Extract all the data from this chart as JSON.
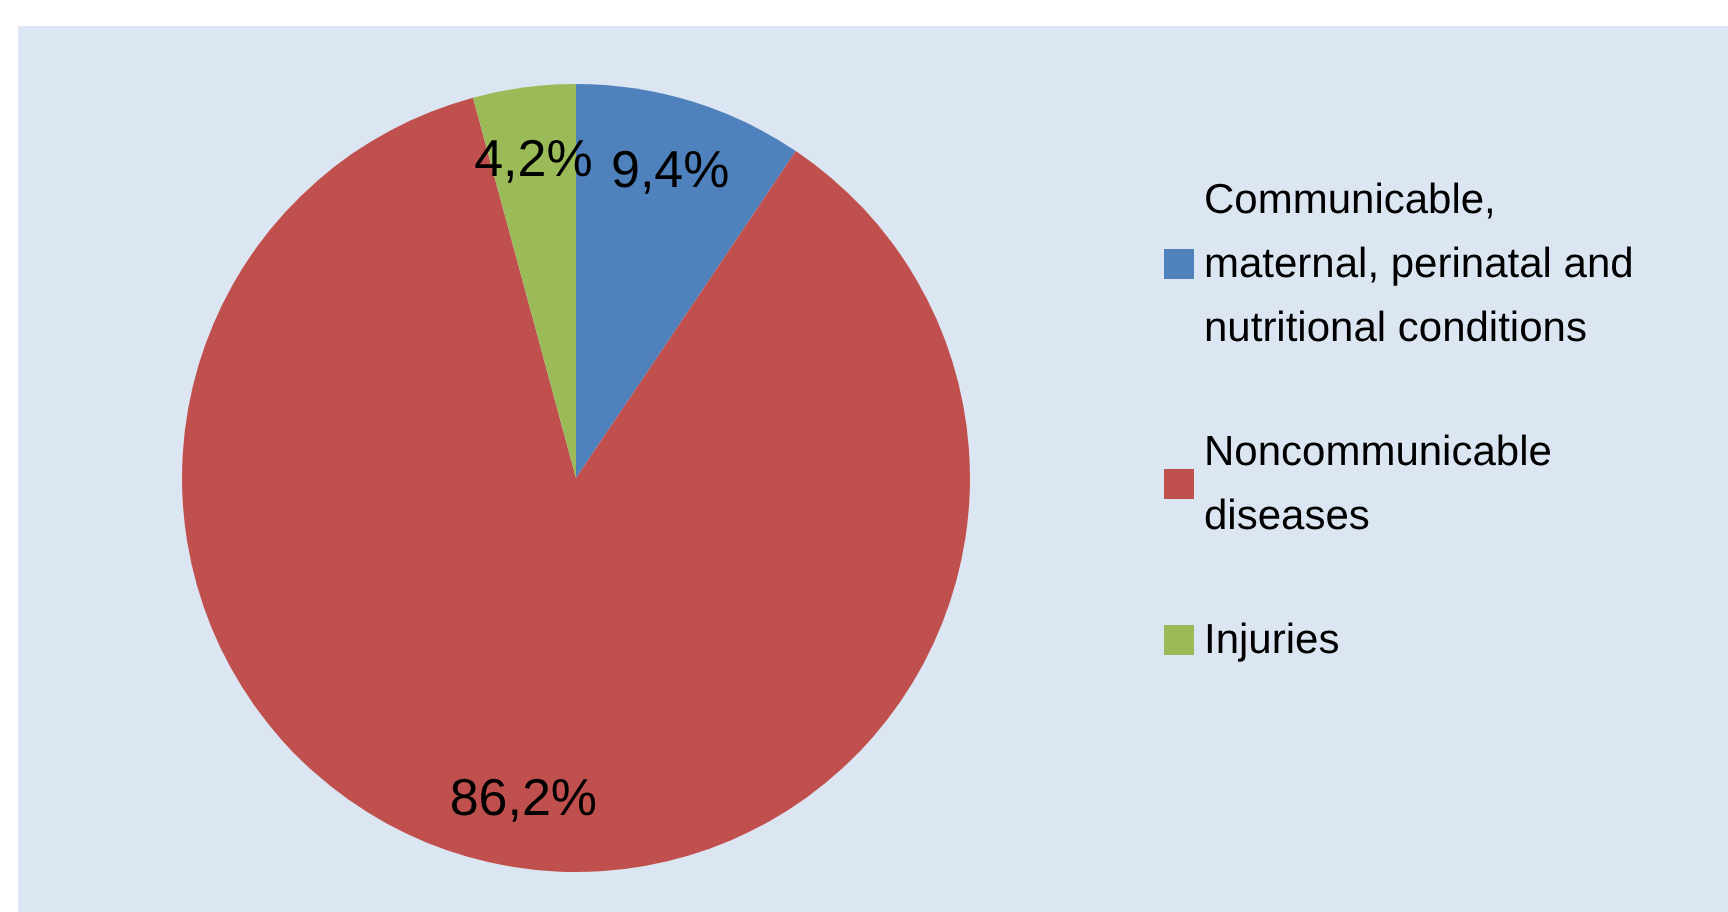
{
  "chart_data": {
    "type": "pie",
    "categories": [
      "Communicable, maternal, perinatal and nutritional conditions",
      "Noncommunicable diseases",
      "Injuries"
    ],
    "values": [
      9.4,
      86.2,
      4.2
    ],
    "colors": [
      "#4f81bd",
      "#c0504d",
      "#9bbb59"
    ],
    "value_labels": [
      "9,4%",
      "86,2%",
      "4,2%"
    ],
    "legend": "right"
  }
}
